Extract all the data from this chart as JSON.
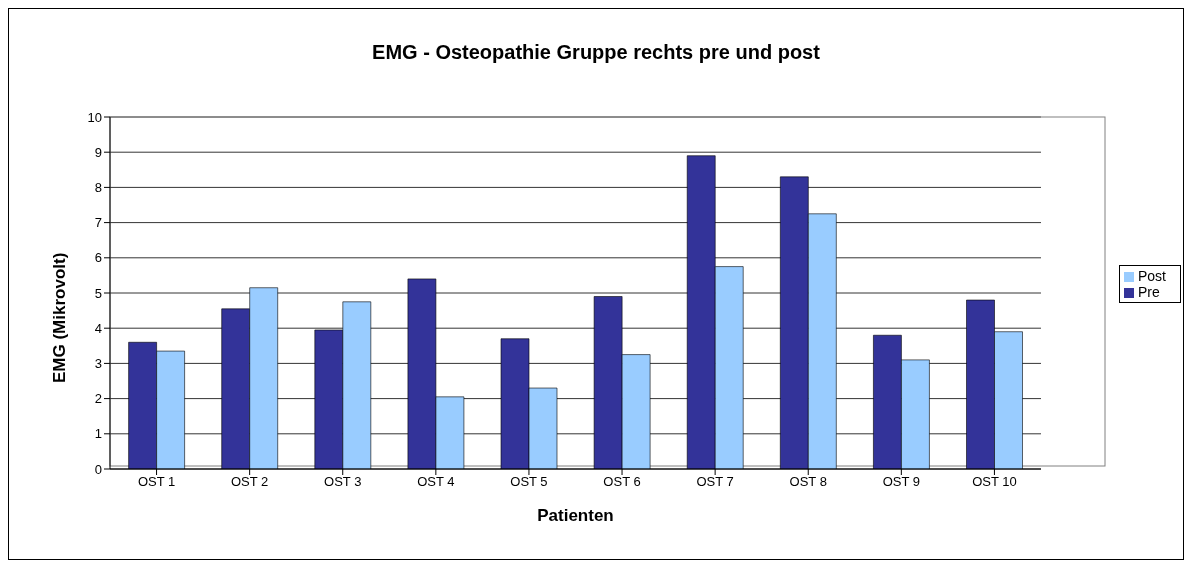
{
  "chart_data": {
    "type": "bar",
    "title": "EMG - Osteopathie Gruppe rechts pre und post",
    "xlabel": "Patienten",
    "ylabel": "EMG (Mikrovolt)",
    "categories": [
      "OST 1",
      "OST 2",
      "OST 3",
      "OST 4",
      "OST 5",
      "OST 6",
      "OST 7",
      "OST 8",
      "OST 9",
      "OST 10"
    ],
    "series": [
      {
        "name": "Pre",
        "color": "#333399",
        "values": [
          3.6,
          4.55,
          3.95,
          5.4,
          3.7,
          4.9,
          8.9,
          8.3,
          3.8,
          4.8
        ]
      },
      {
        "name": "Post",
        "color": "#99ccff",
        "values": [
          3.35,
          5.15,
          4.75,
          2.05,
          2.3,
          3.25,
          5.75,
          7.25,
          3.1,
          3.9
        ]
      }
    ],
    "ylim": [
      0,
      10
    ],
    "yticks": [
      0,
      1,
      2,
      3,
      4,
      5,
      6,
      7,
      8,
      9,
      10
    ],
    "grid": "y",
    "legend": "right"
  }
}
